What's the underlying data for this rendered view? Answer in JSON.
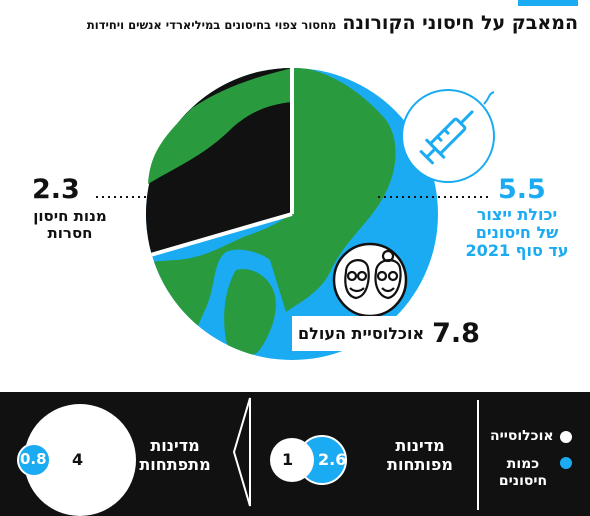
{
  "header": {
    "title": "המאבק על חיסוני הקורונה",
    "subtitle": "מחסור צפוי בחיסונים במיליארדי אנשים ויחידות"
  },
  "globe": {
    "world_population": {
      "value": "7.8",
      "label": "אוכלוסיית העולם"
    },
    "production_capacity": {
      "value": "5.5",
      "label_lines": [
        "יכולת ייצור",
        "של חיסונים",
        "עד סוף 2021"
      ]
    },
    "missing_doses": {
      "value": "2.3",
      "label_lines": [
        "מנות חיסון",
        "חסרות"
      ]
    }
  },
  "legend": {
    "population": "אוכלוסייה",
    "vaccines_lines": [
      "כמות",
      "חיסונים"
    ]
  },
  "comparison": {
    "developed": {
      "label_lines": [
        "מדינות",
        "מפותחות"
      ],
      "population": "1",
      "vaccines": "2.6"
    },
    "developing": {
      "label_lines": [
        "מדינות",
        "מתפתחות"
      ],
      "population": "4",
      "vaccines": "0.8"
    }
  },
  "chart_data": {
    "type": "pie",
    "title": "המאבק על חיסוני הקורונה",
    "subtitle": "מחסור צפוי בחיסונים במיליארדי אנשים ויחידות",
    "total": 7.8,
    "slices": [
      {
        "label": "יכולת ייצור של חיסונים עד סוף 2021",
        "value": 5.5
      },
      {
        "label": "מנות חיסון חסרות",
        "value": 2.3
      }
    ],
    "groups": [
      {
        "label": "מדינות מפותחות",
        "population": 1,
        "vaccines": 2.6
      },
      {
        "label": "מדינות מתפתחות",
        "population": 4,
        "vaccines": 0.8
      }
    ]
  },
  "colors": {
    "accent": "#1aabf2",
    "land": "#2a9a3e",
    "dark": "#111111"
  }
}
